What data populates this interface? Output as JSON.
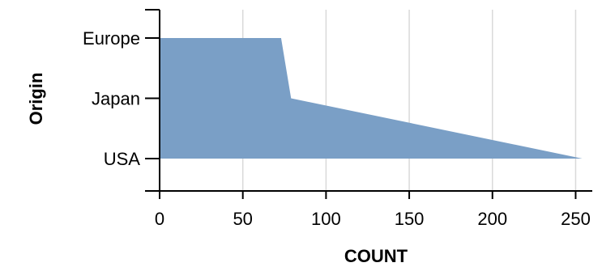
{
  "chart_data": {
    "type": "area",
    "orient": "horizontal",
    "xlabel": "COUNT",
    "ylabel": "Origin",
    "categories": [
      "Europe",
      "Japan",
      "USA"
    ],
    "values": [
      73,
      79,
      254
    ],
    "xlim": [
      0,
      260
    ],
    "x_ticks": [
      "0",
      "50",
      "100",
      "150",
      "200",
      "250"
    ],
    "grid": "vertical",
    "colors": {
      "area": "#7a9fc6",
      "grid": "#d9d9d9",
      "axis": "#000000"
    }
  }
}
